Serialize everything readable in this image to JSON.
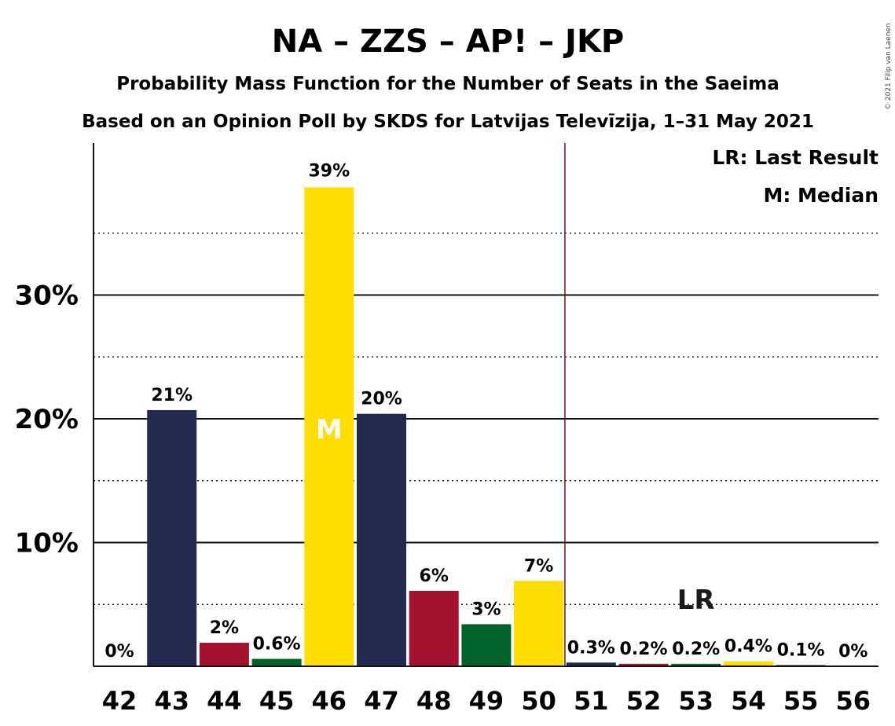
{
  "chart_data": {
    "type": "bar",
    "title": "NA – ZZS – AP! – JKP",
    "subtitle": "Probability Mass Function for the Number of Seats in the Saeima",
    "subtitle2": "Based on an Opinion Poll by SKDS for Latvijas Televīzija, 1–31 May 2021",
    "copyright": "© 2021 Filip van Laenen",
    "legend": {
      "last_result": "LR: Last Result",
      "median": "M: Median",
      "placement": "top-right"
    },
    "ylim": [
      0,
      42
    ],
    "y_ticks": [
      {
        "value": 10,
        "label": "10%"
      },
      {
        "value": 20,
        "label": "20%"
      },
      {
        "value": 30,
        "label": "30%"
      }
    ],
    "minor_grid": [
      5,
      15,
      25,
      35
    ],
    "categories": [
      "42",
      "43",
      "44",
      "45",
      "46",
      "47",
      "48",
      "49",
      "50",
      "51",
      "52",
      "53",
      "54",
      "55",
      "56"
    ],
    "values": [
      0,
      20.7,
      1.9,
      0.6,
      38.7,
      20.4,
      6.1,
      3.4,
      6.9,
      0.3,
      0.2,
      0.2,
      0.4,
      0.1,
      0
    ],
    "value_labels": [
      "0%",
      "21%",
      "2%",
      "0.6%",
      "39%",
      "20%",
      "6%",
      "3%",
      "7%",
      "0.3%",
      "0.2%",
      "0.2%",
      "0.4%",
      "0.1%",
      "0%"
    ],
    "colors": [
      "#FFDD00",
      "#232A50",
      "#A31330",
      "#02642C",
      "#FFDD00",
      "#232A50",
      "#A31330",
      "#02642C",
      "#FFDD00",
      "#232A50",
      "#A31330",
      "#02642C",
      "#FFDD00",
      "#232A50",
      "#A31330"
    ],
    "median_seat": "46",
    "median_marker": "M",
    "last_result_seat": "53",
    "last_result_marker": "LR",
    "majority_line_after": "50"
  }
}
